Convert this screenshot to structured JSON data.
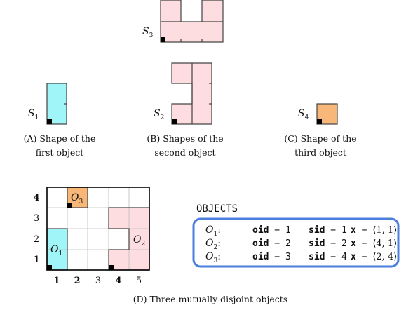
{
  "colors": {
    "cyan": "#9ff5f7",
    "pink": "#fddde0",
    "orange": "#f7b779",
    "border": "#444444",
    "blue_box": "#4a7fdf",
    "black": "#000000"
  },
  "shapes": {
    "s1": {
      "name": "S",
      "sub": "1"
    },
    "s2": {
      "name": "S",
      "sub": "2"
    },
    "s3": {
      "name": "S",
      "sub": "3"
    },
    "s4": {
      "name": "S",
      "sub": "4"
    }
  },
  "captions": {
    "a": [
      "(A) Shape of the",
      "first object"
    ],
    "b": [
      "(B) Shapes of the",
      "second object"
    ],
    "c": [
      "(C) Shape of the",
      "third object"
    ],
    "d": "(D) Three mutually disjoint objects"
  },
  "grid": {
    "x_labels": [
      "1",
      "2",
      "3",
      "4",
      "5"
    ],
    "y_labels": [
      "1",
      "2",
      "3",
      "4"
    ],
    "objects": [
      {
        "name": "O",
        "sub": "1"
      },
      {
        "name": "O",
        "sub": "2"
      },
      {
        "name": "O",
        "sub": "3"
      }
    ]
  },
  "objects_table": {
    "title": "OBJECTS",
    "rows": [
      {
        "name": "O",
        "sub": "1",
        "sep": ":",
        "oid_label": "oid",
        "oid": "1",
        "sid_label": "sid",
        "sid": "1",
        "x_label": "x",
        "x": "⟨1, 1⟩"
      },
      {
        "name": "O",
        "sub": "2",
        "sep": ":",
        "oid_label": "oid",
        "oid": "2",
        "sid_label": "sid",
        "sid": "2",
        "x_label": "x",
        "x": "⟨4, 1⟩"
      },
      {
        "name": "O",
        "sub": "3",
        "sep": ":",
        "oid_label": "oid",
        "oid": "3",
        "sid_label": "sid",
        "sid": "4",
        "x_label": "x",
        "x": "⟨2, 4⟩"
      }
    ]
  }
}
